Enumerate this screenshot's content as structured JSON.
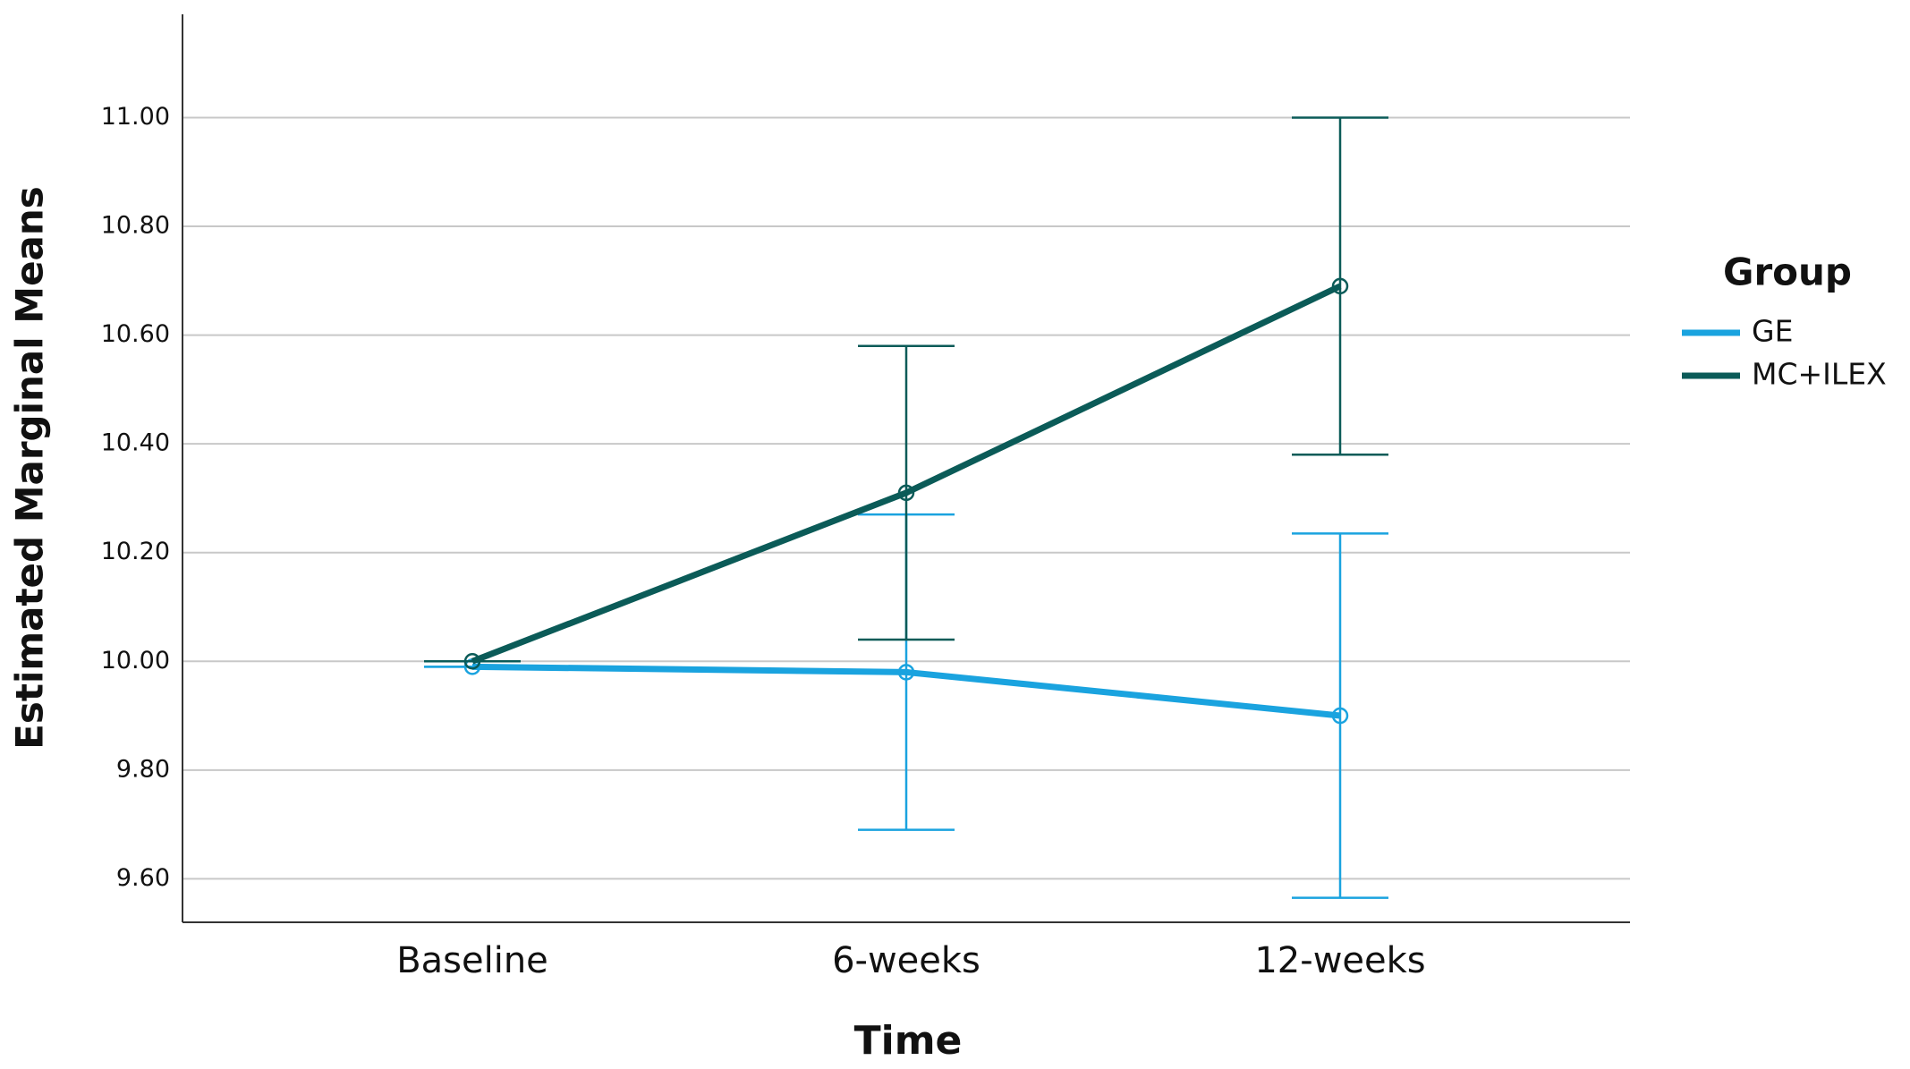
{
  "chart_data": {
    "type": "line",
    "y_label": "Estimated Marginal Means",
    "x_label": "Time",
    "categories": [
      "Baseline",
      "6-weeks",
      "12-weeks"
    ],
    "series": [
      {
        "name": "GE",
        "color": "#1aa3df",
        "values": [
          9.99,
          9.98,
          9.9
        ],
        "error": [
          0,
          0.29,
          0.335
        ]
      },
      {
        "name": "MC+ILEX",
        "color": "#0b5b58",
        "values": [
          10.0,
          10.31,
          10.69
        ],
        "error": [
          0,
          0.27,
          0.31
        ]
      }
    ],
    "legend_title": "Group",
    "ylim": [
      9.52,
      11.19
    ],
    "yticks": [
      {
        "value": 9.6,
        "label": "9.60"
      },
      {
        "value": 9.8,
        "label": "9.80"
      },
      {
        "value": 10,
        "label": "10.00"
      },
      {
        "value": 10.2,
        "label": "10.20"
      },
      {
        "value": 10.4,
        "label": "10.40"
      },
      {
        "value": 10.6,
        "label": "10.60"
      },
      {
        "value": 10.8,
        "label": "10.80"
      },
      {
        "value": 11,
        "label": "11.00"
      }
    ],
    "grid": true,
    "legend": "right"
  }
}
